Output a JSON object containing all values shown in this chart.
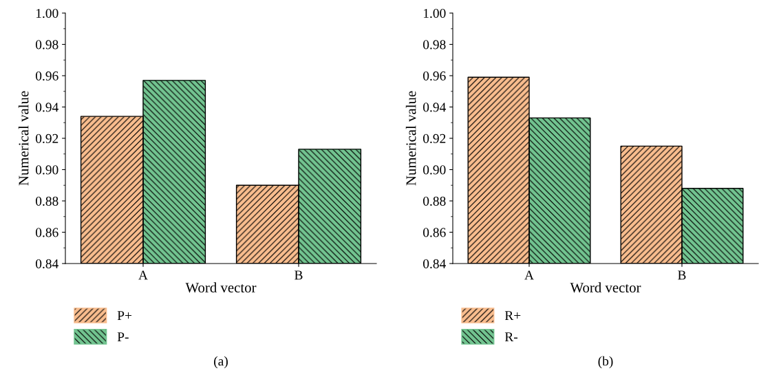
{
  "chart_data": [
    {
      "type": "bar",
      "categories": [
        "A",
        "B"
      ],
      "xlabel": "Word vector",
      "ylabel": "Numerical value",
      "ylim": [
        0.84,
        1.0
      ],
      "yticks": [
        {
          "value": 0.84,
          "label": "0.84"
        },
        {
          "value": 0.86,
          "label": "0.86"
        },
        {
          "value": 0.88,
          "label": "0.88"
        },
        {
          "value": 0.9,
          "label": "0.90"
        },
        {
          "value": 0.92,
          "label": "0.92"
        },
        {
          "value": 0.94,
          "label": "0.94"
        },
        {
          "value": 0.96,
          "label": "0.96"
        },
        {
          "value": 0.98,
          "label": "0.98"
        },
        {
          "value": 1.0,
          "label": "1.00"
        }
      ],
      "legend": "bottom left",
      "annotations": [
        "(a)"
      ],
      "series": [
        {
          "name": "P+",
          "color": "#f9bd8e",
          "values": [
            0.934,
            0.89
          ]
        },
        {
          "name": "P-",
          "color": "#72c490",
          "values": [
            0.957,
            0.913
          ]
        }
      ]
    },
    {
      "type": "bar",
      "categories": [
        "A",
        "B"
      ],
      "xlabel": "Word vector",
      "ylabel": "Numerical value",
      "ylim": [
        0.84,
        1.0
      ],
      "yticks": [
        {
          "value": 0.84,
          "label": "0.84"
        },
        {
          "value": 0.86,
          "label": "0.86"
        },
        {
          "value": 0.88,
          "label": "0.88"
        },
        {
          "value": 0.9,
          "label": "0.90"
        },
        {
          "value": 0.92,
          "label": "0.92"
        },
        {
          "value": 0.94,
          "label": "0.94"
        },
        {
          "value": 0.96,
          "label": "0.96"
        },
        {
          "value": 0.98,
          "label": "0.98"
        },
        {
          "value": 1.0,
          "label": "1.00"
        }
      ],
      "legend": "bottom left",
      "annotations": [
        "(b)"
      ],
      "series": [
        {
          "name": "R+",
          "color": "#f9bd8e",
          "values": [
            0.959,
            0.915
          ]
        },
        {
          "name": "R-",
          "color": "#72c490",
          "values": [
            0.933,
            0.888
          ]
        }
      ]
    }
  ]
}
